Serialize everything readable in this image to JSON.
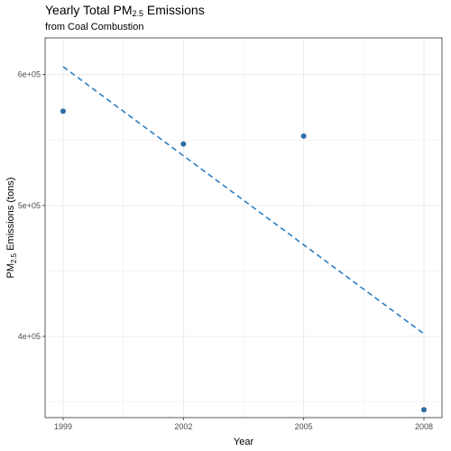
{
  "title": {
    "main": "Yearly Total PM",
    "main_sub": "2.5",
    "main_suffix": " Emissions"
  },
  "subtitle": "from Coal Combustion",
  "colors": {
    "point": "#2e6da4",
    "trend": "#2e7ec0",
    "grid": "#ebebeb",
    "panel_border": "#333333",
    "tick_text": "#4d4d4d"
  },
  "chart_data": {
    "type": "scatter",
    "title": "Yearly Total PM2.5 Emissions",
    "subtitle": "from Coal Combustion",
    "xlabel": "Year",
    "ylabel": "PM2.5 Emissions (tons)",
    "ylabel_parts": {
      "prefix": "PM",
      "sub": "2.5",
      "suffix": " Emissions (tons)"
    },
    "x_ticks": [
      1999,
      2002,
      2005,
      2008
    ],
    "y_ticks": [
      400000,
      500000,
      600000
    ],
    "y_tick_labels": [
      "4e+05",
      "5e+05",
      "6e+05"
    ],
    "xlim": [
      1998.55,
      2008.45
    ],
    "ylim": [
      338000,
      628000
    ],
    "grid": true,
    "series": [
      {
        "x": [
          1999,
          2002,
          2005,
          2008
        ],
        "y": [
          572000,
          547000,
          553000,
          344000
        ]
      }
    ],
    "trend_line": {
      "style": "dashed",
      "x": [
        1999,
        2008
      ],
      "y": [
        606000,
        402000
      ]
    }
  }
}
